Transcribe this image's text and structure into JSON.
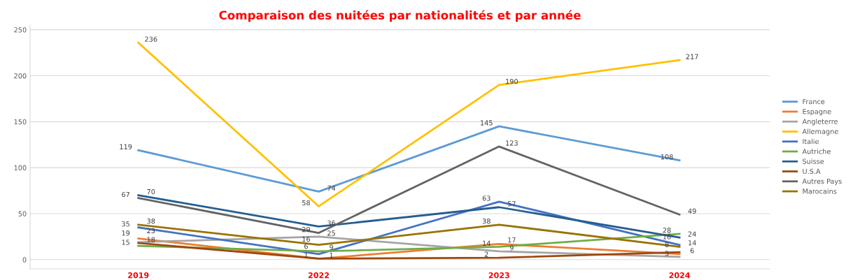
{
  "chart_data": {
    "type": "line",
    "title": "Comparaison des nuitées par nationalités et par année",
    "categories": [
      "2019",
      "2022",
      "2023",
      "2024"
    ],
    "series": [
      {
        "name": "France",
        "color": "#5b9bd5",
        "values": [
          119,
          74,
          145,
          108
        ]
      },
      {
        "name": "Espagne",
        "color": "#ed7d31",
        "values": [
          23,
          1,
          17,
          6
        ]
      },
      {
        "name": "Angleterre",
        "color": "#a5a5a5",
        "values": [
          19,
          25,
          9,
          3
        ]
      },
      {
        "name": "Allemagne",
        "color": "#ffc000",
        "values": [
          236,
          58,
          190,
          217
        ]
      },
      {
        "name": "Italie",
        "color": "#4472c4",
        "values": [
          35,
          6,
          63,
          16
        ]
      },
      {
        "name": "Autriche",
        "color": "#70ad47",
        "values": [
          15,
          9,
          14,
          28
        ]
      },
      {
        "name": "Suisse",
        "color": "#255e91",
        "values": [
          70,
          36,
          57,
          24
        ]
      },
      {
        "name": "U.S.A",
        "color": "#9e480e",
        "values": [
          18,
          1,
          2,
          8
        ]
      },
      {
        "name": "Autres Pays",
        "color": "#636363",
        "values": [
          67,
          29,
          123,
          49
        ]
      },
      {
        "name": "Marocains",
        "color": "#997300",
        "values": [
          38,
          16,
          38,
          14
        ]
      }
    ],
    "ylim": [
      -10,
      255
    ],
    "yticks": [
      0,
      50,
      100,
      150,
      200,
      250
    ],
    "grid": "y",
    "legend": "right",
    "data_labels": true,
    "marker": "none",
    "line_style": "solid"
  }
}
